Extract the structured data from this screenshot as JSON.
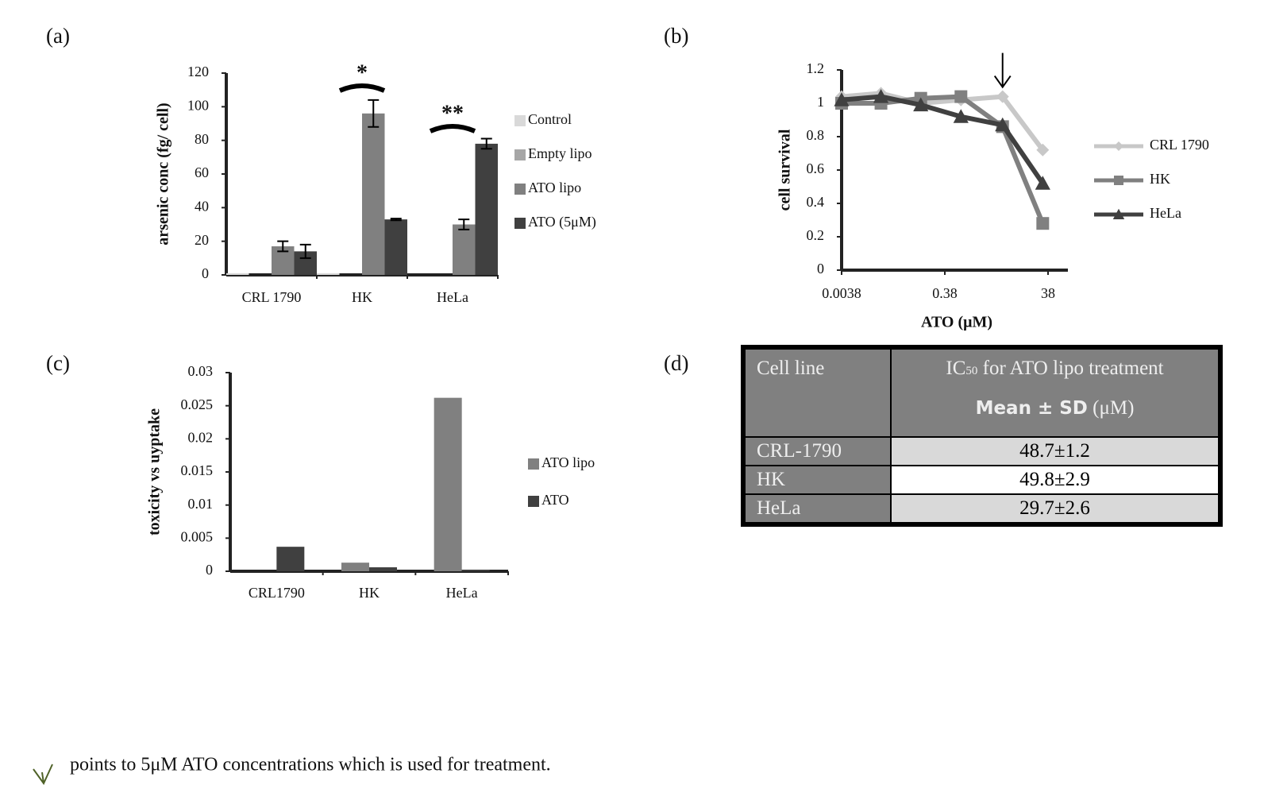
{
  "panel_labels": [
    "(a)",
    "(b)",
    "(c)",
    "(d)"
  ],
  "chart_data": [
    {
      "type": "bar",
      "ylabel": "arsenic conc (fg/ cell)",
      "categories": [
        "CRL 1790",
        "HK",
        "HeLa"
      ],
      "series": [
        {
          "name": "Control",
          "color": "#d9d9d9",
          "values": [
            1,
            1,
            0
          ]
        },
        {
          "name": "Empty lipo",
          "color": "#a6a6a6",
          "values": [
            0,
            0,
            0
          ]
        },
        {
          "name": "ATO lipo",
          "color": "#808080",
          "values": [
            17,
            96,
            30
          ],
          "errors": [
            3,
            8,
            3
          ]
        },
        {
          "name": "ATO (5μM)",
          "color": "#404040",
          "values": [
            14,
            33,
            78
          ],
          "errors": [
            4,
            0.5,
            3
          ]
        }
      ],
      "annotations": [
        "*",
        "**"
      ],
      "ylim": [
        0,
        120
      ],
      "yticks": [
        0,
        20,
        40,
        60,
        80,
        100,
        120
      ],
      "legend": "right"
    },
    {
      "type": "line",
      "xlabel": "ATO (μM)",
      "ylabel": "cell survival",
      "xscale": "log",
      "x": [
        0.0038,
        0.022,
        0.13,
        0.78,
        5,
        30
      ],
      "series": [
        {
          "name": "CRL 1790",
          "color": "#c8c8c8",
          "marker": "diamond",
          "values": [
            1.04,
            1.06,
            1.0,
            1.02,
            1.04,
            0.72
          ]
        },
        {
          "name": "HK",
          "color": "#808080",
          "marker": "square",
          "values": [
            1.0,
            1.0,
            1.03,
            1.04,
            0.86,
            0.28
          ]
        },
        {
          "name": "HeLa",
          "color": "#404040",
          "marker": "triangle",
          "values": [
            1.02,
            1.04,
            0.99,
            0.92,
            0.87,
            0.52
          ]
        }
      ],
      "xlim": [
        0.0038,
        38
      ],
      "xticks": [
        0.0038,
        0.38,
        38
      ],
      "ylim": [
        0,
        1.2
      ],
      "yticks": [
        0,
        0.2,
        0.4,
        0.6,
        0.8,
        1,
        1.2
      ],
      "legend": "right"
    },
    {
      "type": "bar",
      "ylabel": "toxicity vs uyptake",
      "categories": [
        "CRL1790",
        "HK",
        "HeLa"
      ],
      "series": [
        {
          "name": "ATO lipo",
          "color": "#808080",
          "values": [
            0,
            0.0013,
            0.0262
          ]
        },
        {
          "name": "ATO",
          "color": "#404040",
          "values": [
            0.0037,
            0.0006,
            0.0002
          ]
        }
      ],
      "ylim": [
        0,
        0.03
      ],
      "yticks": [
        0,
        0.005,
        0.01,
        0.015,
        0.02,
        0.025,
        0.03
      ],
      "legend": "right"
    }
  ],
  "table": {
    "header": [
      "Cell line",
      "IC",
      "50",
      " for ATO lipo treatment",
      "Mean ± SD",
      " (μM)"
    ],
    "rows": [
      [
        "CRL-1790",
        "48.7±1.2"
      ],
      [
        "HK",
        "49.8±2.9"
      ],
      [
        "HeLa",
        "29.7±2.6"
      ]
    ]
  },
  "footnote": "points to 5μM ATO concentrations which is used for treatment."
}
